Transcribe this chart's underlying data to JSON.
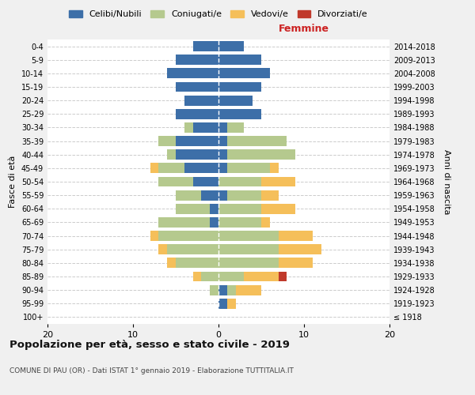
{
  "age_groups": [
    "100+",
    "95-99",
    "90-94",
    "85-89",
    "80-84",
    "75-79",
    "70-74",
    "65-69",
    "60-64",
    "55-59",
    "50-54",
    "45-49",
    "40-44",
    "35-39",
    "30-34",
    "25-29",
    "20-24",
    "15-19",
    "10-14",
    "5-9",
    "0-4"
  ],
  "birth_years": [
    "≤ 1918",
    "1919-1923",
    "1924-1928",
    "1929-1933",
    "1934-1938",
    "1939-1943",
    "1944-1948",
    "1949-1953",
    "1954-1958",
    "1959-1963",
    "1964-1968",
    "1969-1973",
    "1974-1978",
    "1979-1983",
    "1984-1988",
    "1989-1993",
    "1994-1998",
    "1999-2003",
    "2004-2008",
    "2009-2013",
    "2014-2018"
  ],
  "male": {
    "celibi": [
      0,
      0,
      0,
      0,
      0,
      0,
      0,
      1,
      1,
      2,
      3,
      4,
      5,
      5,
      3,
      5,
      4,
      5,
      6,
      5,
      3
    ],
    "coniugati": [
      0,
      0,
      1,
      2,
      5,
      6,
      7,
      6,
      4,
      3,
      4,
      3,
      1,
      2,
      1,
      0,
      0,
      0,
      0,
      0,
      0
    ],
    "vedovi": [
      0,
      0,
      0,
      1,
      1,
      1,
      1,
      0,
      0,
      0,
      0,
      1,
      0,
      0,
      0,
      0,
      0,
      0,
      0,
      0,
      0
    ],
    "divorziati": [
      0,
      0,
      0,
      0,
      0,
      0,
      0,
      0,
      0,
      0,
      0,
      0,
      0,
      0,
      0,
      0,
      0,
      0,
      0,
      0,
      0
    ]
  },
  "female": {
    "nubili": [
      0,
      1,
      1,
      0,
      0,
      0,
      0,
      0,
      0,
      1,
      0,
      1,
      1,
      1,
      1,
      5,
      4,
      5,
      6,
      5,
      3
    ],
    "coniugate": [
      0,
      0,
      1,
      3,
      7,
      7,
      7,
      5,
      5,
      4,
      5,
      5,
      8,
      7,
      2,
      0,
      0,
      0,
      0,
      0,
      0
    ],
    "vedove": [
      0,
      1,
      3,
      4,
      4,
      5,
      4,
      1,
      4,
      2,
      4,
      1,
      0,
      0,
      0,
      0,
      0,
      0,
      0,
      0,
      0
    ],
    "divorziate": [
      0,
      0,
      0,
      1,
      0,
      0,
      0,
      0,
      0,
      0,
      0,
      0,
      0,
      0,
      0,
      0,
      0,
      0,
      0,
      0,
      0
    ]
  },
  "colors": {
    "celibi": "#3d6fa8",
    "coniugati": "#b5c98e",
    "vedovi": "#f5bf5a",
    "divorziati": "#c0392b"
  },
  "xlim": 20,
  "title": "Popolazione per età, sesso e stato civile - 2019",
  "subtitle": "COMUNE DI PAU (OR) - Dati ISTAT 1° gennaio 2019 - Elaborazione TUTTITALIA.IT",
  "xlabel_right": "Femmine",
  "ylabel_left": "Fasce di età",
  "ylabel_right": "Anni di nascita",
  "legend_labels": [
    "Celibi/Nubili",
    "Coniugati/e",
    "Vedovi/e",
    "Divorziati/e"
  ],
  "bg_color": "#f0f0f0",
  "plot_bg": "#ffffff"
}
